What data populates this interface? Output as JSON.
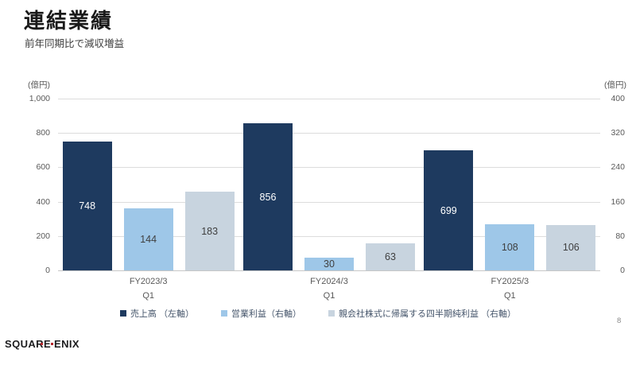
{
  "slide": {
    "title": "連結業績",
    "subtitle": "前年同期比で減収増益",
    "page_number": "8",
    "logo": "SQUARE ENIX"
  },
  "chart_data": {
    "type": "bar",
    "title": "連結業績",
    "categories": [
      "FY2023/3",
      "FY2024/3",
      "FY2025/3"
    ],
    "category_sublabels": [
      "Q1",
      "Q1",
      "Q1"
    ],
    "left_axis": {
      "unit": "(億円)",
      "min": 0,
      "max": 1000,
      "ticks": [
        "1,000",
        "800",
        "600",
        "400",
        "200",
        "0"
      ]
    },
    "right_axis": {
      "unit": "(億円)",
      "min": 0,
      "max": 400,
      "ticks": [
        "400",
        "320",
        "240",
        "160",
        "80",
        "0"
      ]
    },
    "grid": true,
    "legend_position": "bottom",
    "series": [
      {
        "name": "売上高 （左軸）",
        "axis": "left",
        "color": "#1e3a5f",
        "label_color": "#ffffff",
        "values": [
          748,
          856,
          699
        ]
      },
      {
        "name": "営業利益（右軸）",
        "axis": "right",
        "color": "#9ec7e8",
        "label_color": "#3f3f3f",
        "values": [
          144,
          30,
          108
        ]
      },
      {
        "name": "親会社株式に帰属する四半期純利益 （右軸）",
        "axis": "right",
        "color": "#c8d4df",
        "label_color": "#3f3f3f",
        "values": [
          183,
          63,
          106
        ]
      }
    ]
  }
}
